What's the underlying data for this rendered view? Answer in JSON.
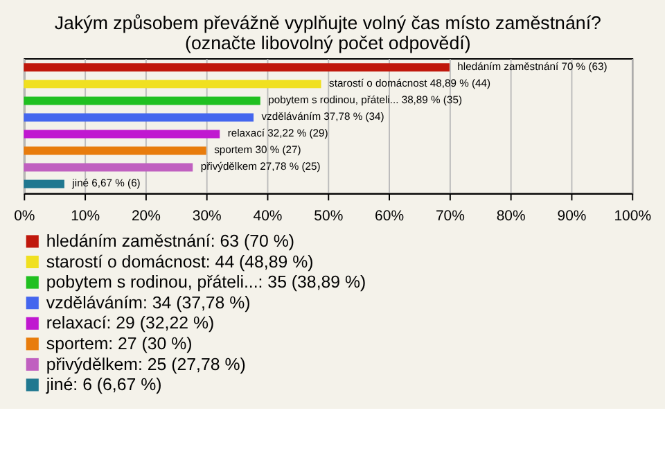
{
  "chart_data": {
    "type": "bar",
    "orientation": "horizontal",
    "title": "Jakým způsobem převážně vyplňujte volný čas místo zaměstnání?",
    "subtitle": "(označte libovolný počet odpovědí)",
    "categories": [
      null,
      null,
      null,
      null,
      null,
      null,
      null,
      null
    ],
    "series": [
      {
        "name": "hledáním zaměstnání: 63 (70 %)",
        "color": "#c0180c",
        "values": [
          70,
          null,
          null,
          null,
          null,
          null,
          null,
          null
        ],
        "value_labels": [
          "hledáním zaměstnání 70 % (63)",
          null,
          null,
          null,
          null,
          null,
          null,
          null
        ]
      },
      {
        "name": "starostí o domácnost: 44 (48,89 %)",
        "color": "#f0e020",
        "values": [
          null,
          48.89,
          null,
          null,
          null,
          null,
          null,
          null
        ],
        "value_labels": [
          null,
          "starostí o domácnost 48,89 % (44)",
          null,
          null,
          null,
          null,
          null,
          null
        ]
      },
      {
        "name": "pobytem s rodinou, přáteli...: 35 (38,89 %)",
        "color": "#20c020",
        "values": [
          null,
          null,
          38.89,
          null,
          null,
          null,
          null,
          null
        ],
        "value_labels": [
          null,
          null,
          "pobytem s rodinou, přáteli... 38,89 % (35)",
          null,
          null,
          null,
          null,
          null
        ]
      },
      {
        "name": "vzděláváním: 34 (37,78 %)",
        "color": "#4466ee",
        "values": [
          null,
          null,
          null,
          37.78,
          null,
          null,
          null,
          null
        ],
        "value_labels": [
          null,
          null,
          null,
          "vzděláváním 37,78 % (34)",
          null,
          null,
          null,
          null
        ]
      },
      {
        "name": "relaxací: 29 (32,22 %)",
        "color": "#c018d0",
        "values": [
          null,
          null,
          null,
          null,
          32.22,
          null,
          null,
          null
        ],
        "value_labels": [
          null,
          null,
          null,
          null,
          "relaxací 32,22 % (29)",
          null,
          null,
          null
        ]
      },
      {
        "name": "sportem: 27 (30 %)",
        "color": "#e87c0c",
        "values": [
          null,
          null,
          null,
          null,
          null,
          30,
          null,
          null
        ],
        "value_labels": [
          null,
          null,
          null,
          null,
          null,
          "sportem 30 % (27)",
          null,
          null
        ]
      },
      {
        "name": "přivýdělkem: 25 (27,78 %)",
        "color": "#c060c0",
        "values": [
          null,
          null,
          null,
          null,
          null,
          null,
          27.78,
          null
        ],
        "value_labels": [
          null,
          null,
          null,
          null,
          null,
          null,
          "přivýdělkem 27,78 % (25)",
          null
        ]
      },
      {
        "name": "jiné: 6 (6,67 %)",
        "color": "#207890",
        "values": [
          null,
          null,
          null,
          null,
          null,
          null,
          null,
          6.67
        ],
        "value_labels": [
          null,
          null,
          null,
          null,
          null,
          null,
          null,
          "jiné 6,67 % (6)"
        ]
      }
    ],
    "xlim": [
      0,
      100
    ],
    "xticks": [
      {
        "value": 0,
        "label": "0%"
      },
      {
        "value": 10,
        "label": "10%"
      },
      {
        "value": 20,
        "label": "20%"
      },
      {
        "value": 30,
        "label": "30%"
      },
      {
        "value": 40,
        "label": "40%"
      },
      {
        "value": 50,
        "label": "50%"
      },
      {
        "value": 60,
        "label": "60%"
      },
      {
        "value": 70,
        "label": "70%"
      },
      {
        "value": 80,
        "label": "80%"
      },
      {
        "value": 90,
        "label": "90%"
      },
      {
        "value": 100,
        "label": "100%"
      }
    ],
    "grid": "x",
    "legend": "bottom left",
    "tick_labels": "x"
  }
}
